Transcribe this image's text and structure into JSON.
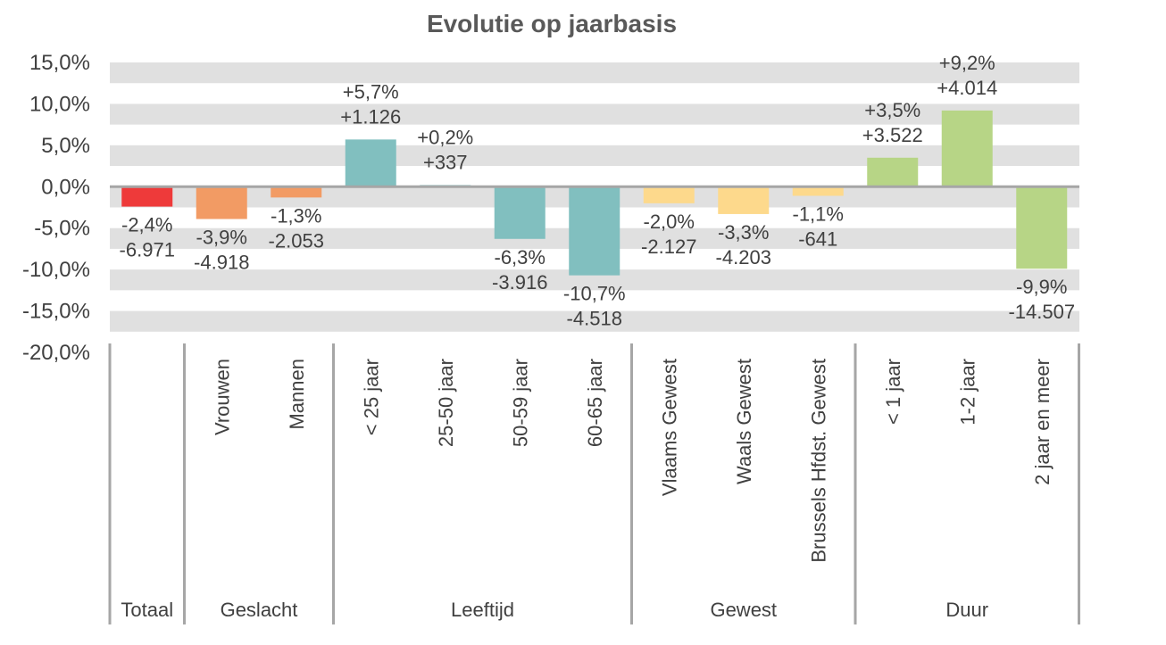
{
  "chart_data": {
    "type": "bar",
    "title": "Evolutie op jaarbasis",
    "ylim": [
      -20,
      15
    ],
    "y_ticks": [
      15,
      10,
      5,
      0,
      -5,
      -10,
      -15,
      -20
    ],
    "y_tick_labels": [
      "15,0%",
      "10,0%",
      "5,0%",
      "0,0%",
      "-5,0%",
      "-10,0%",
      "-15,0%",
      "-20,0%"
    ],
    "grid": "alternating horizontal bands",
    "categories": [
      "",
      "Vrouwen",
      "Mannen",
      "< 25 jaar",
      "25-50 jaar",
      "50-59 jaar",
      "60-65 jaar",
      "Vlaams Gewest",
      "Waals Gewest",
      "Brussels Hfdst. Gewest",
      "< 1 jaar",
      "1-2 jaar",
      "2 jaar en meer"
    ],
    "values": [
      -2.4,
      -3.9,
      -1.3,
      5.7,
      0.2,
      -6.3,
      -10.7,
      -2.0,
      -3.3,
      -1.1,
      3.5,
      9.2,
      -9.9
    ],
    "pct_labels": [
      "-2,4%",
      "-3,9%",
      "-1,3%",
      "+5,7%",
      "+0,2%",
      "-6,3%",
      "-10,7%",
      "-2,0%",
      "-3,3%",
      "-1,1%",
      "+3,5%",
      "+9,2%",
      "-9,9%"
    ],
    "abs_labels": [
      "-6.971",
      "-4.918",
      "-2.053",
      "+1.126",
      "+337",
      "-3.916",
      "-4.518",
      "-2.127",
      "-4.203",
      "-641",
      "+3.522",
      "+4.014",
      "-14.507"
    ],
    "groups": [
      {
        "name": "Totaal",
        "count": 1,
        "color": "#ee3a3a"
      },
      {
        "name": "Geslacht",
        "count": 2,
        "color": "#f29b64"
      },
      {
        "name": "Leeftijd",
        "count": 4,
        "color": "#81bfbf"
      },
      {
        "name": "Gewest",
        "count": 3,
        "color": "#fdd98c"
      },
      {
        "name": "Duur",
        "count": 3,
        "color": "#b7d586"
      }
    ]
  }
}
